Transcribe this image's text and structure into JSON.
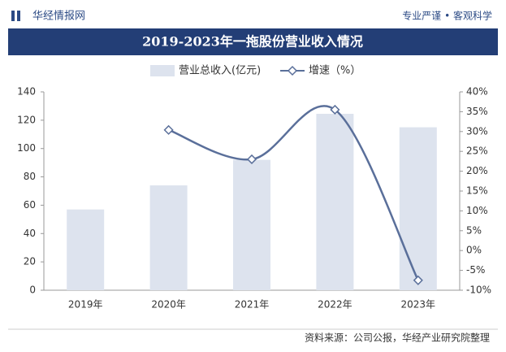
{
  "header": {
    "brand": "华经情报网",
    "slogan": "专业严谨 • 客观科学"
  },
  "chart_data": {
    "type": "bar",
    "title": "2019-2023年一拖股份营业收入情况",
    "categories": [
      "2019年",
      "2020年",
      "2021年",
      "2022年",
      "2023年"
    ],
    "series": [
      {
        "name": "营业总收入(亿元)",
        "type": "bar",
        "color": "#dde3ee",
        "values": [
          57,
          74,
          92,
          124.5,
          115
        ]
      },
      {
        "name": "增速（%）",
        "type": "line",
        "color": "#5a6f9a",
        "axis": "y2",
        "values": [
          null,
          30.4,
          23,
          35.5,
          -7.5
        ]
      }
    ],
    "ylim": [
      0,
      140
    ],
    "yticks": [
      0,
      20,
      40,
      60,
      80,
      100,
      120,
      140
    ],
    "y2lim": [
      -10,
      40
    ],
    "y2ticks": [
      {
        "value": -10,
        "label": "-10%"
      },
      {
        "value": -5,
        "label": "-5%"
      },
      {
        "value": 0,
        "label": "0%"
      },
      {
        "value": 5,
        "label": "5%"
      },
      {
        "value": 10,
        "label": "10%"
      },
      {
        "value": 15,
        "label": "15%"
      },
      {
        "value": 20,
        "label": "20%"
      },
      {
        "value": 25,
        "label": "25%"
      },
      {
        "value": 30,
        "label": "30%"
      },
      {
        "value": 35,
        "label": "35%"
      },
      {
        "value": 40,
        "label": "40%"
      }
    ],
    "grid": false,
    "source": "资料来源：公司公报，华经产业研究院整理"
  }
}
